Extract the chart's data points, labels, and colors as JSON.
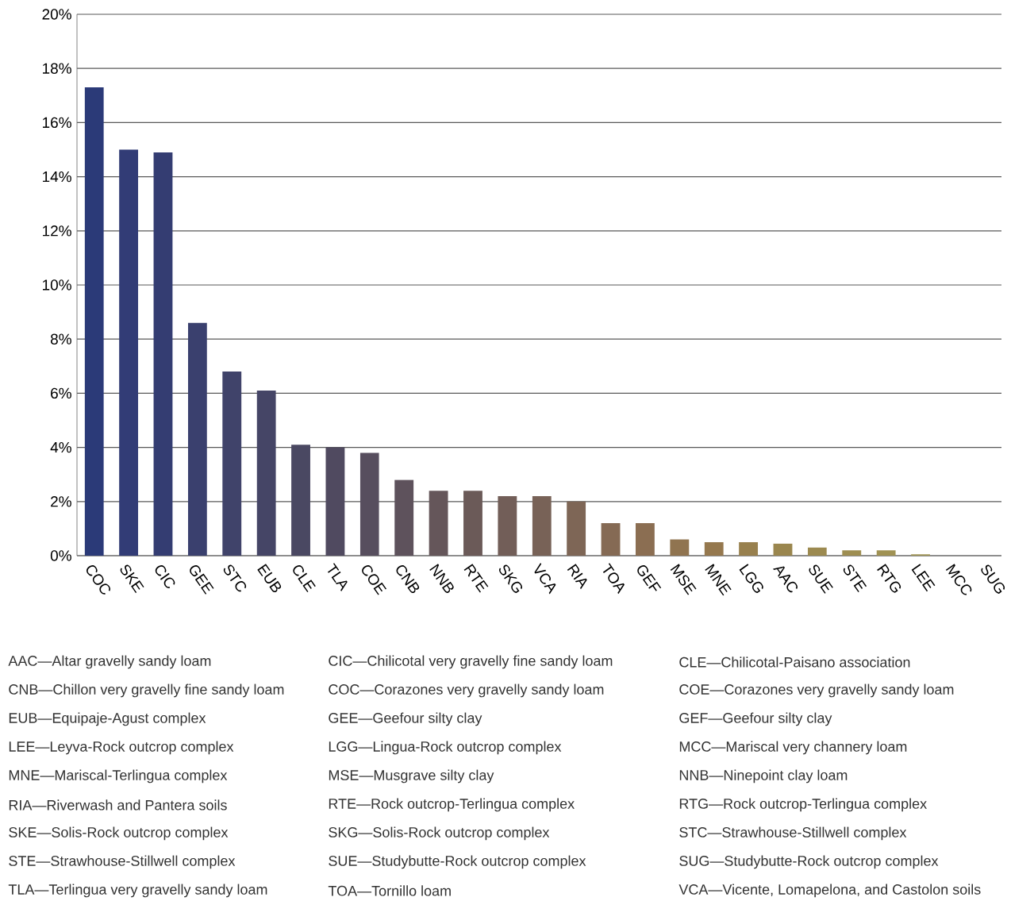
{
  "chart_data": {
    "type": "bar",
    "categories": [
      "COC",
      "SKE",
      "CIC",
      "GEE",
      "STC",
      "EUB",
      "CLE",
      "TLA",
      "COE",
      "CNB",
      "NNB",
      "RTE",
      "SKG",
      "VCA",
      "RIA",
      "TOA",
      "GEF",
      "MSE",
      "MNE",
      "LGG",
      "AAC",
      "SUE",
      "STE",
      "RTG",
      "LEE",
      "MCC",
      "SUG"
    ],
    "values": [
      17.3,
      15.0,
      14.9,
      8.6,
      6.8,
      6.1,
      4.1,
      4.0,
      3.8,
      2.8,
      2.4,
      2.4,
      2.2,
      2.2,
      2.0,
      1.2,
      1.2,
      0.6,
      0.5,
      0.5,
      0.45,
      0.3,
      0.2,
      0.2,
      0.05,
      0,
      0
    ],
    "colors": [
      "#2b3a78",
      "#323c76",
      "#343d72",
      "#3a406e",
      "#40436a",
      "#454566",
      "#4a4862",
      "#504a60",
      "#574e5e",
      "#5e525c",
      "#65565a",
      "#6b5a58",
      "#725e58",
      "#786257",
      "#7e6656",
      "#856a54",
      "#8b6e52",
      "#907450",
      "#95784e",
      "#98804e",
      "#9a864e",
      "#9c8a50",
      "#9e8e52",
      "#a09254",
      "#a29656",
      "#a49a58",
      "#a69e5a"
    ],
    "ylim": [
      0,
      20
    ],
    "yticks": [
      {
        "value": 0,
        "label": "0%"
      },
      {
        "value": 2,
        "label": "2%"
      },
      {
        "value": 4,
        "label": "4%"
      },
      {
        "value": 6,
        "label": "6%"
      },
      {
        "value": 8,
        "label": "8%"
      },
      {
        "value": 10,
        "label": "10%"
      },
      {
        "value": 12,
        "label": "12%"
      },
      {
        "value": 14,
        "label": "14%"
      },
      {
        "value": 16,
        "label": "16%"
      },
      {
        "value": 18,
        "label": "18%"
      },
      {
        "value": 20,
        "label": "20%"
      }
    ],
    "grid": "y",
    "annotations": [
      "AAC—Altar gravelly sandy loam",
      "CNB—Chillon very gravelly fine sandy loam",
      "EUB—Equipaje-Agust complex",
      "LEE—Leyva-Rock outcrop complex",
      "MNE—Mariscal-Terlingua complex",
      "RIA—Riverwash and Pantera soils",
      "SKE—Solis-Rock outcrop complex",
      "STE—Strawhouse-Stillwell complex",
      "TLA—Terlingua very gravelly sandy loam",
      "CIC—Chilicotal very gravelly fine sandy loam",
      "COC—Corazones very gravelly sandy loam",
      "GEE—Geefour silty clay",
      "LGG—Lingua-Rock outcrop complex",
      "MSE—Musgrave silty clay",
      "RTE—Rock outcrop-Terlingua complex",
      "SKG—Solis-Rock outcrop complex",
      "SUE—Studybutte-Rock outcrop complex",
      "TOA—Tornillo loam",
      "CLE—Chilicotal-Paisano association",
      "COE—Corazones very gravelly sandy loam",
      "GEF—Geefour silty clay",
      "MCC—Mariscal very channery loam",
      "NNB—Ninepoint clay loam",
      "RTG—Rock outcrop-Terlingua complex",
      "STC—Strawhouse-Stillwell complex",
      "SUG—Studybutte-Rock outcrop complex",
      "VCA—Vicente, Lomapelona, and Castolon soils"
    ]
  }
}
